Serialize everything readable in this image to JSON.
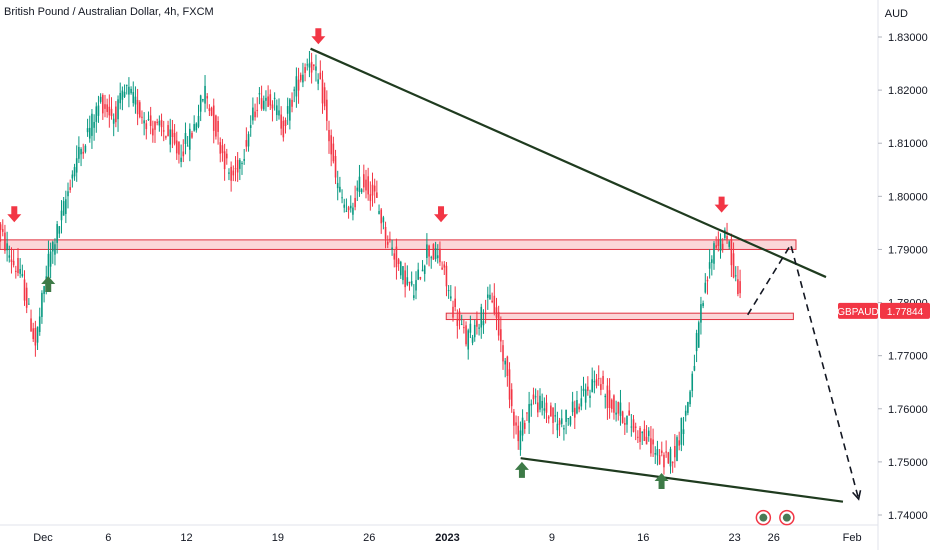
{
  "chart_data": {
    "type": "candlestick",
    "title": "British Pound / Australian Dollar, 4h, FXCM",
    "currency": "AUD",
    "symbol": "GBPAUD",
    "last_price_label": "1.77844",
    "ylim": [
      1.737,
      1.834
    ],
    "y_ticks": [
      "1.83000",
      "1.82000",
      "1.81000",
      "1.80000",
      "1.79000",
      "1.78000",
      "1.77000",
      "1.76000",
      "1.75000",
      "1.74000"
    ],
    "y_tick_values": [
      1.83,
      1.82,
      1.81,
      1.8,
      1.79,
      1.78,
      1.77,
      1.76,
      1.75,
      1.74
    ],
    "x_ticks": [
      {
        "label": "Dec",
        "day": 0,
        "bold": false
      },
      {
        "label": "6",
        "day": 5,
        "bold": false
      },
      {
        "label": "12",
        "day": 11,
        "bold": false
      },
      {
        "label": "19",
        "day": 18,
        "bold": false
      },
      {
        "label": "26",
        "day": 25,
        "bold": false
      },
      {
        "label": "2023",
        "day": 31,
        "bold": true
      },
      {
        "label": "9",
        "day": 39,
        "bold": false
      },
      {
        "label": "16",
        "day": 46,
        "bold": false
      },
      {
        "label": "23",
        "day": 53,
        "bold": false
      },
      {
        "label": "26",
        "day": 56,
        "bold": false
      },
      {
        "label": "Feb",
        "day": 62,
        "bold": false
      }
    ],
    "price_path_daily_closes": [
      [
        -3.5,
        1.795
      ],
      [
        -2.5,
        1.789
      ],
      [
        -1.5,
        1.784
      ],
      [
        -0.5,
        1.772
      ],
      [
        0.5,
        1.788
      ],
      [
        1.5,
        1.796
      ],
      [
        2.5,
        1.806
      ],
      [
        3.5,
        1.812
      ],
      [
        4.5,
        1.818
      ],
      [
        5.5,
        1.815
      ],
      [
        6.5,
        1.82
      ],
      [
        7.5,
        1.816
      ],
      [
        8.5,
        1.813
      ],
      [
        9.5,
        1.812
      ],
      [
        10.5,
        1.808
      ],
      [
        11.5,
        1.812
      ],
      [
        12.5,
        1.82
      ],
      [
        13.5,
        1.811
      ],
      [
        14.5,
        1.803
      ],
      [
        15.5,
        1.809
      ],
      [
        16.5,
        1.818
      ],
      [
        17.5,
        1.819
      ],
      [
        18.5,
        1.813
      ],
      [
        19.5,
        1.821
      ],
      [
        20.5,
        1.826
      ],
      [
        21.5,
        1.819
      ],
      [
        22.5,
        1.803
      ],
      [
        23.5,
        1.796
      ],
      [
        24.5,
        1.803
      ],
      [
        25.5,
        1.8
      ],
      [
        26.5,
        1.792
      ],
      [
        27.5,
        1.786
      ],
      [
        28.5,
        1.782
      ],
      [
        29.5,
        1.79
      ],
      [
        30.5,
        1.788
      ],
      [
        31.5,
        1.779
      ],
      [
        32.5,
        1.773
      ],
      [
        33.5,
        1.777
      ],
      [
        34.5,
        1.781
      ],
      [
        35.5,
        1.768
      ],
      [
        36.5,
        1.754
      ],
      [
        37.5,
        1.762
      ],
      [
        38.5,
        1.76
      ],
      [
        39.5,
        1.757
      ],
      [
        40.5,
        1.759
      ],
      [
        41.5,
        1.762
      ],
      [
        42.5,
        1.766
      ],
      [
        43.5,
        1.761
      ],
      [
        44.5,
        1.759
      ],
      [
        45.5,
        1.756
      ],
      [
        46.5,
        1.754
      ],
      [
        47.5,
        1.75
      ],
      [
        48.5,
        1.752
      ],
      [
        49.5,
        1.761
      ],
      [
        50.5,
        1.778
      ],
      [
        51.5,
        1.791
      ],
      [
        52.5,
        1.792
      ],
      [
        53.5,
        1.781
      ]
    ],
    "resistance_trendline": [
      [
        20.5,
        1.8278
      ],
      [
        60.0,
        1.7848
      ]
    ],
    "support_trendline": [
      [
        36.6,
        1.7507
      ],
      [
        61.3,
        1.7425
      ]
    ],
    "resistance_zone": {
      "x_range": [
        -5,
        57.7
      ],
      "y_range": [
        1.79,
        1.7918
      ]
    },
    "support_zone": {
      "x_range": [
        30.9,
        57.5
      ],
      "y_range": [
        1.7768,
        1.778
      ]
    },
    "projection_path": [
      [
        54.0,
        1.7777
      ],
      [
        57.3,
        1.7909
      ],
      [
        62.5,
        1.743
      ]
    ],
    "down_arrows": [
      [
        -2.2,
        1.7955
      ],
      [
        21.1,
        1.829
      ],
      [
        30.5,
        1.7955
      ],
      [
        52.0,
        1.7973
      ]
    ],
    "up_arrows": [
      [
        0.4,
        1.7835
      ],
      [
        36.7,
        1.7485
      ],
      [
        47.4,
        1.7464
      ]
    ],
    "event_markers": [
      [
        55.2,
        1.7395
      ],
      [
        57.0,
        1.7395
      ]
    ],
    "colors": {
      "up_candle": "#089981",
      "down_candle": "#f23645",
      "trendline": "#1f3b1f",
      "zone_fill": "#f8b4b8",
      "zone_border": "#e0313f",
      "down_arrow": "#f23645",
      "up_arrow": "#3d7a47",
      "price_label_bg": "#f23645",
      "price_label_text": "#ffffff",
      "axis_text": "#131722",
      "plot_bg": "#ffffff"
    }
  }
}
